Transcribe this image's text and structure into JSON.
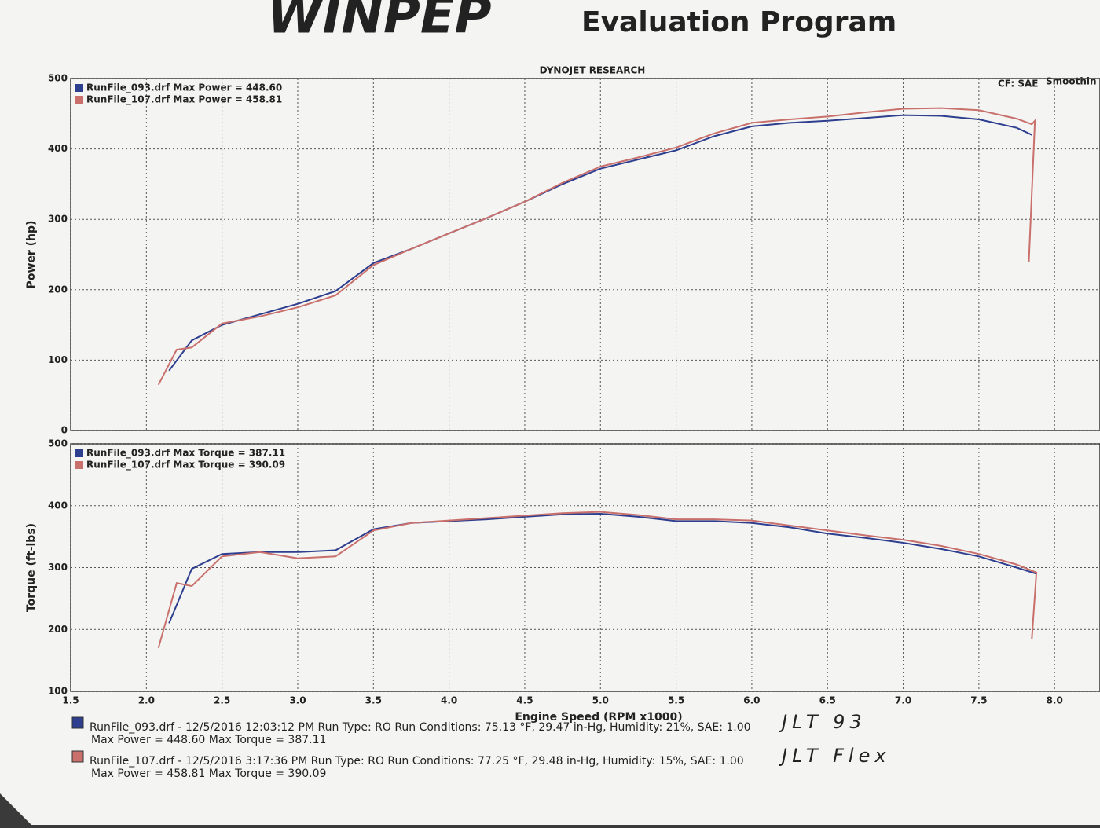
{
  "header": {
    "logo": "WINPEP",
    "subtitle": "Evaluation Program",
    "company": "DYNOJET RESEARCH",
    "correction": "CF: SAE",
    "smoothing": "Smoothin"
  },
  "chart_data": [
    {
      "type": "line",
      "y_label": "Power (hp)",
      "xlim": [
        1.5,
        8.3
      ],
      "ylim": [
        0,
        500
      ],
      "yticks": [
        0,
        100,
        200,
        300,
        400,
        500
      ],
      "grid": true,
      "series": [
        {
          "name": "RunFile_093.drf Max Power = 448.60",
          "color": "#2e3f8f",
          "x": [
            2.15,
            2.3,
            2.5,
            2.75,
            3.0,
            3.25,
            3.5,
            3.75,
            4.0,
            4.25,
            4.5,
            4.75,
            5.0,
            5.25,
            5.5,
            5.75,
            6.0,
            6.25,
            6.5,
            6.75,
            7.0,
            7.25,
            7.5,
            7.75,
            7.85
          ],
          "values": [
            85,
            128,
            150,
            165,
            180,
            198,
            238,
            258,
            280,
            302,
            325,
            350,
            372,
            385,
            398,
            418,
            432,
            437,
            440,
            444,
            448,
            447,
            442,
            430,
            420
          ]
        },
        {
          "name": "RunFile_107.drf Max Power = 458.81",
          "color": "#c9706c",
          "x": [
            2.08,
            2.2,
            2.3,
            2.5,
            2.75,
            3.0,
            3.25,
            3.5,
            3.75,
            4.0,
            4.25,
            4.5,
            4.75,
            5.0,
            5.25,
            5.5,
            5.75,
            6.0,
            6.25,
            6.5,
            6.75,
            7.0,
            7.25,
            7.5,
            7.75,
            7.85,
            7.87,
            7.83
          ],
          "values": [
            65,
            115,
            118,
            152,
            162,
            175,
            192,
            235,
            258,
            280,
            302,
            325,
            352,
            375,
            388,
            402,
            422,
            437,
            442,
            446,
            452,
            457,
            458,
            455,
            443,
            435,
            440,
            240
          ]
        }
      ]
    },
    {
      "type": "line",
      "y_label": "Torque (ft-lbs)",
      "x_label": "Engine Speed (RPM x1000)",
      "xlim": [
        1.5,
        8.3
      ],
      "ylim": [
        100,
        500
      ],
      "yticks": [
        100,
        200,
        300,
        400,
        500
      ],
      "grid": true,
      "xticks": [
        1.5,
        {
          "value": 2,
          "label": "2.0"
        },
        2.5,
        {
          "value": 3,
          "label": "3.0"
        },
        3.5,
        {
          "value": 4,
          "label": "4.0"
        },
        4.5,
        {
          "value": 5,
          "label": "5.0"
        },
        5.5,
        {
          "value": 6,
          "label": "6.0"
        },
        6.5,
        {
          "value": 7,
          "label": "7.0"
        },
        7.5,
        {
          "value": 8,
          "label": "8.0"
        }
      ],
      "series": [
        {
          "name": "RunFile_093.drf Max Torque = 387.11",
          "color": "#2e3f8f",
          "x": [
            2.15,
            2.3,
            2.5,
            2.75,
            3.0,
            3.25,
            3.5,
            3.75,
            4.0,
            4.25,
            4.5,
            4.75,
            5.0,
            5.25,
            5.5,
            5.75,
            6.0,
            6.25,
            6.5,
            6.75,
            7.0,
            7.25,
            7.5,
            7.75,
            7.88
          ],
          "values": [
            210,
            298,
            322,
            325,
            325,
            328,
            362,
            372,
            375,
            378,
            382,
            386,
            387,
            382,
            375,
            375,
            372,
            365,
            355,
            348,
            340,
            330,
            318,
            300,
            290
          ]
        },
        {
          "name": "RunFile_107.drf Max Torque = 390.09",
          "color": "#c9706c",
          "x": [
            2.08,
            2.2,
            2.3,
            2.5,
            2.75,
            3.0,
            3.25,
            3.5,
            3.75,
            4.0,
            4.25,
            4.5,
            4.75,
            5.0,
            5.25,
            5.5,
            5.75,
            6.0,
            6.25,
            6.5,
            6.75,
            7.0,
            7.25,
            7.5,
            7.75,
            7.88,
            7.85
          ],
          "values": [
            170,
            275,
            270,
            318,
            325,
            315,
            318,
            360,
            372,
            376,
            380,
            384,
            388,
            390,
            385,
            378,
            378,
            376,
            368,
            360,
            352,
            345,
            335,
            322,
            305,
            292,
            185
          ]
        }
      ]
    }
  ],
  "footer": {
    "runs": [
      {
        "line1": "RunFile_093.drf - 12/5/2016 12:03:12 PM  Run Type: RO  Run Conditions: 75.13 °F, 29.47 in-Hg,  Humidity: 21%, SAE: 1.00",
        "line2": "Max Power = 448.60  Max Torque = 387.11",
        "note": "JLT 93",
        "color": "#2e3f8f"
      },
      {
        "line1": "RunFile_107.drf - 12/5/2016 3:17:36 PM  Run Type: RO  Run Conditions: 77.25 °F, 29.48 in-Hg,  Humidity: 15%, SAE: 1.00",
        "line2": "Max Power = 458.81  Max Torque = 390.09",
        "note": "JLT Flex",
        "color": "#c9706c"
      }
    ]
  }
}
